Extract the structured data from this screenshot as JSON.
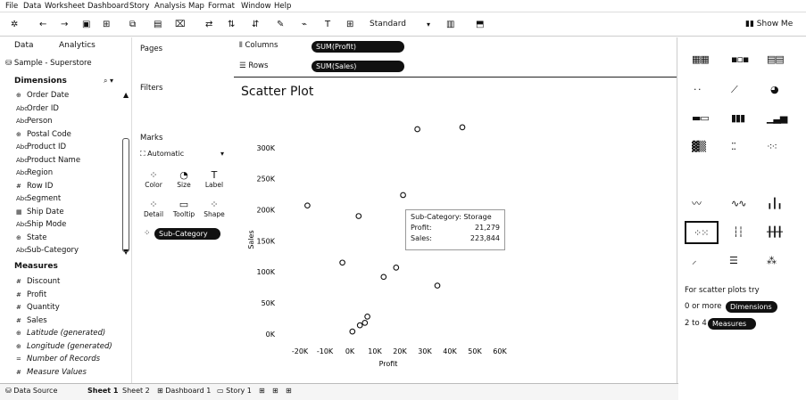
{
  "menu": [
    "File",
    "Data",
    "Worksheet",
    "Dashboard",
    "Story",
    "Analysis",
    "Map",
    "Format",
    "Window",
    "Help"
  ],
  "toolbar": {
    "fit_select": "Standard",
    "show_me_label": "Show Me",
    "icons": [
      "tableau-logo-icon",
      "undo-icon",
      "redo-icon",
      "save-icon",
      "new-datasource-icon",
      "new-worksheet-icon",
      "clear-icon",
      "swap-icon",
      "sort-asc-icon",
      "sort-desc-icon",
      "highlight-icon",
      "group-icon",
      "labels-icon",
      "fit-icon",
      "presentation-icon"
    ]
  },
  "data_pane": {
    "tab_data": "Data",
    "tab_analytics": "Analytics",
    "datasource": "Sample - Superstore",
    "dimensions_header": "Dimensions",
    "dimensions": [
      {
        "icon": "⊕",
        "label": "Order Date"
      },
      {
        "icon": "Abc",
        "label": "Order ID"
      },
      {
        "icon": "Abc",
        "label": "Person"
      },
      {
        "icon": "⊕",
        "label": "Postal Code"
      },
      {
        "icon": "Abc",
        "label": "Product ID"
      },
      {
        "icon": "Abc",
        "label": "Product Name"
      },
      {
        "icon": "Abc",
        "label": "Region"
      },
      {
        "icon": "#",
        "label": "Row ID"
      },
      {
        "icon": "Abc",
        "label": "Segment"
      },
      {
        "icon": "▦",
        "label": "Ship Date"
      },
      {
        "icon": "Abc",
        "label": "Ship Mode"
      },
      {
        "icon": "⊕",
        "label": "State"
      },
      {
        "icon": "Abc",
        "label": "Sub-Category"
      }
    ],
    "measures_header": "Measures",
    "measures": [
      {
        "icon": "#",
        "label": "Discount",
        "italic": false
      },
      {
        "icon": "#",
        "label": "Profit",
        "italic": false
      },
      {
        "icon": "#",
        "label": "Quantity",
        "italic": false
      },
      {
        "icon": "#",
        "label": "Sales",
        "italic": false
      },
      {
        "icon": "⊕",
        "label": "Latitude (generated)",
        "italic": true
      },
      {
        "icon": "⊕",
        "label": "Longitude (generated)",
        "italic": true
      },
      {
        "icon": "=",
        "label": "Number of Records",
        "italic": true
      },
      {
        "icon": "#",
        "label": "Measure Values",
        "italic": true
      }
    ]
  },
  "cards": {
    "pages": "Pages",
    "filters": "Filters",
    "marks": "Marks",
    "mark_type": "Automatic",
    "buttons": [
      {
        "icon": "⁘",
        "label": "Color"
      },
      {
        "icon": "◔",
        "label": "Size"
      },
      {
        "icon": "T",
        "label": "Label"
      },
      {
        "icon": "⁘",
        "label": "Detail"
      },
      {
        "icon": "▭",
        "label": "Tooltip"
      },
      {
        "icon": "⁘",
        "label": "Shape"
      }
    ],
    "detail_pill": "Sub-Category"
  },
  "shelves": {
    "columns_label": "Columns",
    "columns_pill": "SUM(Profit)",
    "rows_label": "Rows",
    "rows_pill": "SUM(Sales)"
  },
  "chart_data": {
    "type": "scatter",
    "title": "Scatter Plot",
    "xlabel": "Profit",
    "ylabel": "Sales",
    "xlim": [
      -25000,
      60000
    ],
    "ylim": [
      -3000,
      330000
    ],
    "x_ticks": [
      "-20K",
      "-10K",
      "0K",
      "10K",
      "20K",
      "30K",
      "40K",
      "50K",
      "60K"
    ],
    "x_tick_values": [
      -20000,
      -10000,
      0,
      10000,
      20000,
      30000,
      40000,
      50000,
      60000
    ],
    "y_ticks": [
      "0K",
      "50K",
      "100K",
      "150K",
      "200K",
      "250K",
      "300K"
    ],
    "y_tick_values": [
      0,
      50000,
      100000,
      150000,
      200000,
      250000,
      300000
    ],
    "points": [
      {
        "x": 27000,
        "y": 330000
      },
      {
        "x": 45000,
        "y": 333000
      },
      {
        "x": -17000,
        "y": 207000
      },
      {
        "x": 21279,
        "y": 223844
      },
      {
        "x": 3500,
        "y": 190000
      },
      {
        "x": -3000,
        "y": 115000
      },
      {
        "x": 18500,
        "y": 107000
      },
      {
        "x": 13500,
        "y": 92000
      },
      {
        "x": 35000,
        "y": 78000
      },
      {
        "x": 7000,
        "y": 28000
      },
      {
        "x": 6000,
        "y": 18000
      },
      {
        "x": 4000,
        "y": 14000
      },
      {
        "x": 1000,
        "y": 4000
      }
    ],
    "tooltip": {
      "category_label": "Sub-Category:",
      "category_value": "Storage",
      "profit_label": "Profit:",
      "profit_value": "21,279",
      "sales_label": "Sales:",
      "sales_value": "223,844"
    }
  },
  "show_me": {
    "hint_title": "For scatter plots try",
    "hint_line1_prefix": "0 or more",
    "hint_line1_pill": "Dimensions",
    "hint_line2_prefix": "2 to 4",
    "hint_line2_pill": "Measures"
  },
  "tabs": {
    "data_source": "Data Source",
    "sheets": [
      "Sheet 1",
      "Sheet 2"
    ],
    "dashboard": "Dashboard 1",
    "story": "Story 1"
  }
}
